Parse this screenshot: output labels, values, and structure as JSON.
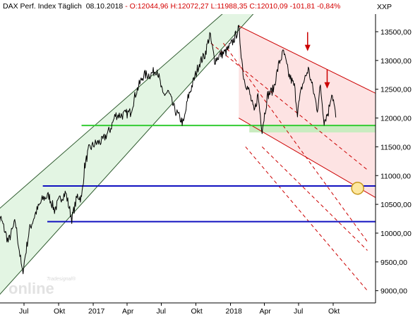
{
  "header": {
    "instrument": "DAX Perf. Index Täglich",
    "date": "08.10.2018",
    "open": "O:12044,96",
    "high": "H:12072,27",
    "low": "L:11988,35",
    "close": "C:12010,09",
    "change": "-101,81",
    "change_pct": "-0,84%"
  },
  "currency": "XXP",
  "watermark": {
    "brand": "online",
    "tagline": "Tradesignal®"
  },
  "colors": {
    "price": "#000000",
    "uptrend_fill": "#e3f5e3",
    "uptrend_border": "#2e5a2e",
    "downtrend_fill": "#fde3e3",
    "downtrend_line": "#cc0000",
    "support_green": "#33cc33",
    "support_blue": "#1010c0",
    "marker_fill": "#fde7a0",
    "marker_stroke": "#c89a1e"
  },
  "chart_data": {
    "type": "line",
    "title": "",
    "ylabel": "",
    "xlabel": "",
    "ylim": [
      8800,
      13800
    ],
    "y_ticks": [
      "9000,00",
      "9500,00",
      "10000,00",
      "10500,00",
      "11000,00",
      "11500,00",
      "12000,00",
      "12500,00",
      "13000,00",
      "13500,00"
    ],
    "x_ticks": [
      {
        "label": "Jul",
        "date": "2016-07-01"
      },
      {
        "label": "Okt",
        "date": "2016-10-01"
      },
      {
        "label": "2017",
        "date": "2017-01-01"
      },
      {
        "label": "Apr",
        "date": "2017-04-01"
      },
      {
        "label": "Jul",
        "date": "2017-07-01"
      },
      {
        "label": "Okt",
        "date": "2017-10-01"
      },
      {
        "label": "2018",
        "date": "2018-01-01"
      },
      {
        "label": "Apr",
        "date": "2018-04-01"
      },
      {
        "label": "Jul",
        "date": "2018-07-01"
      },
      {
        "label": "Okt",
        "date": "2018-10-01"
      }
    ],
    "grid": false,
    "series": [
      {
        "values": [
          [
            "2016-04-15",
            10100
          ],
          [
            "2016-05-01",
            10250
          ],
          [
            "2016-05-20",
            9850
          ],
          [
            "2016-06-08",
            10200
          ],
          [
            "2016-06-27",
            9300
          ],
          [
            "2016-07-15",
            10050
          ],
          [
            "2016-08-01",
            10350
          ],
          [
            "2016-08-20",
            10600
          ],
          [
            "2016-09-05",
            10650
          ],
          [
            "2016-09-20",
            10400
          ],
          [
            "2016-10-05",
            10600
          ],
          [
            "2016-10-20",
            10700
          ],
          [
            "2016-11-05",
            10250
          ],
          [
            "2016-11-20",
            10650
          ],
          [
            "2016-12-01",
            10600
          ],
          [
            "2016-12-09",
            11150
          ],
          [
            "2016-12-20",
            11450
          ],
          [
            "2017-01-05",
            11550
          ],
          [
            "2017-01-25",
            11600
          ],
          [
            "2017-02-15",
            11800
          ],
          [
            "2017-03-01",
            12050
          ],
          [
            "2017-03-20",
            12050
          ],
          [
            "2017-04-10",
            12100
          ],
          [
            "2017-04-25",
            12450
          ],
          [
            "2017-05-15",
            12750
          ],
          [
            "2017-06-01",
            12750
          ],
          [
            "2017-06-20",
            12850
          ],
          [
            "2017-07-05",
            12400
          ],
          [
            "2017-07-20",
            12450
          ],
          [
            "2017-08-05",
            12150
          ],
          [
            "2017-08-29",
            11900
          ],
          [
            "2017-09-10",
            12350
          ],
          [
            "2017-09-25",
            12650
          ],
          [
            "2017-10-10",
            12950
          ],
          [
            "2017-10-25",
            13100
          ],
          [
            "2017-11-07",
            13450
          ],
          [
            "2017-11-20",
            13000
          ],
          [
            "2017-12-05",
            13100
          ],
          [
            "2017-12-20",
            13150
          ],
          [
            "2018-01-05",
            13300
          ],
          [
            "2018-01-23",
            13550
          ],
          [
            "2018-02-05",
            12700
          ],
          [
            "2018-02-20",
            12450
          ],
          [
            "2018-03-05",
            12100
          ],
          [
            "2018-03-15",
            12400
          ],
          [
            "2018-03-26",
            11800
          ],
          [
            "2018-04-10",
            12400
          ],
          [
            "2018-04-25",
            12500
          ],
          [
            "2018-05-10",
            12950
          ],
          [
            "2018-05-22",
            13150
          ],
          [
            "2018-06-05",
            12750
          ],
          [
            "2018-06-20",
            12550
          ],
          [
            "2018-06-28",
            12100
          ],
          [
            "2018-07-10",
            12550
          ],
          [
            "2018-07-27",
            12850
          ],
          [
            "2018-08-10",
            12450
          ],
          [
            "2018-08-20",
            12150
          ],
          [
            "2018-08-28",
            12550
          ],
          [
            "2018-09-07",
            11950
          ],
          [
            "2018-09-18",
            12100
          ],
          [
            "2018-09-27",
            12450
          ],
          [
            "2018-10-02",
            12300
          ],
          [
            "2018-10-08",
            12010
          ]
        ]
      }
    ],
    "trend_channels": [
      {
        "kind": "uptrend",
        "lower": [
          [
            "2016-05-01",
            8960
          ],
          [
            "2017-10-21",
            12850
          ]
        ],
        "upper": [
          [
            "2016-05-01",
            10450
          ],
          [
            "2017-12-09",
            13800
          ]
        ]
      },
      {
        "kind": "downtrend",
        "upper": [
          [
            "2018-01-23",
            13600
          ],
          [
            "2018-12-31",
            12500
          ]
        ],
        "lower": [
          [
            "2018-01-23",
            12000
          ],
          [
            "2018-12-31",
            10700
          ]
        ]
      }
    ],
    "dashed_lines": [
      [
        [
          "2017-11-10",
          13300
        ],
        [
          "2018-12-31",
          11100
        ]
      ],
      [
        [
          "2017-12-13",
          13300
        ],
        [
          "2018-12-31",
          9850
        ]
      ],
      [
        [
          "2018-02-10",
          11500
        ],
        [
          "2018-12-31",
          9000
        ]
      ],
      [
        [
          "2018-03-26",
          11500
        ],
        [
          "2018-12-31",
          9700
        ]
      ]
    ],
    "horizontal_levels": [
      {
        "value": 11870,
        "color": "green",
        "from": "2016-12-01"
      },
      {
        "value": 10820,
        "color": "blue",
        "from": "2016-08-20"
      },
      {
        "value": 10200,
        "color": "blue",
        "from": "2016-09-01"
      }
    ],
    "support_zone": {
      "from": "2018-02-20",
      "to": "2018-12-31",
      "low": 11750,
      "high": 11870
    },
    "arrows": [
      {
        "date": "2018-07-25",
        "value": 13150
      },
      {
        "date": "2018-09-15",
        "value": 12500
      }
    ],
    "highlight_point": {
      "date": "2018-12-05",
      "value": 10780
    }
  }
}
